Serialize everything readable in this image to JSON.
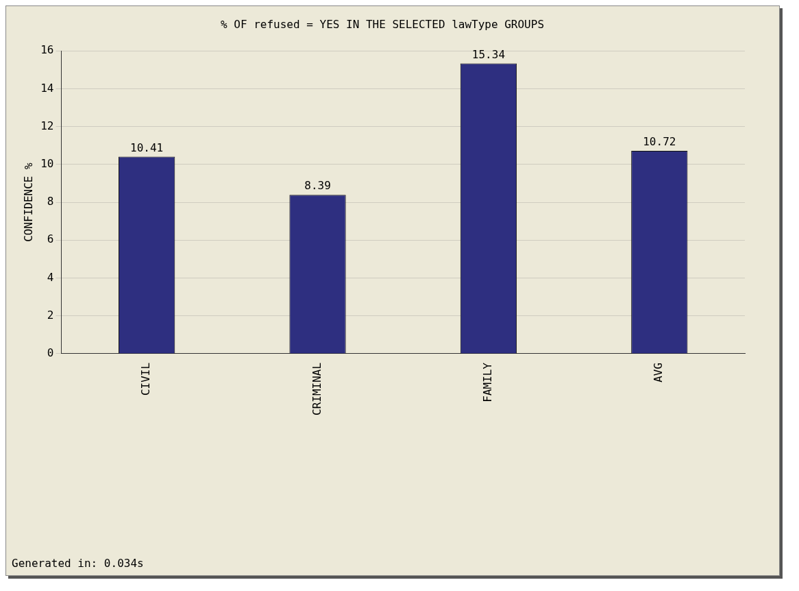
{
  "chart_data": {
    "type": "bar",
    "title": "% OF refused = YES IN THE SELECTED lawType GROUPS",
    "ylabel": "CONFIDENCE %",
    "categories": [
      "CIVIL",
      "CRIMINAL",
      "FAMILY",
      "AVG"
    ],
    "values": [
      10.41,
      8.39,
      15.34,
      10.72
    ],
    "color": "#2e2f80",
    "ylim": [
      0,
      16
    ],
    "yticks": [
      0,
      2,
      4,
      6,
      8,
      10,
      12,
      14,
      16
    ],
    "grid": "y",
    "data_labels": true,
    "legend": false,
    "annotations": [
      "Generated in: 0.034s"
    ]
  }
}
